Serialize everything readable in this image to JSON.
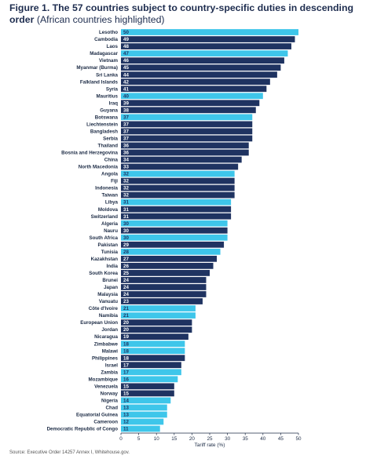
{
  "title": {
    "main": "Figure 1. The 57 countries subject to country-specific duties in descending order",
    "sub": " (African countries highlighted)"
  },
  "source": "Source: Executive Order 14257 Annex I, Whitehouse.gov.",
  "colors": {
    "african": "#3ec6ea",
    "other": "#1f3361",
    "text": "#1b2a44"
  },
  "chart_data": {
    "type": "bar",
    "orientation": "horizontal",
    "xlabel": "Tariff rate (%)",
    "xlim": [
      0,
      50
    ],
    "xticks": [
      0,
      5,
      10,
      15,
      20,
      25,
      30,
      35,
      40,
      45,
      50
    ],
    "grid": false,
    "categories": [
      "Lesotho",
      "Cambodia",
      "Laos",
      "Madagascar",
      "Vietnam",
      "Myanmar (Burma)",
      "Sri Lanka",
      "Falkland Islands",
      "Syria",
      "Mauritius",
      "Iraq",
      "Guyana",
      "Botswana",
      "Liechtenstein",
      "Bangladesh",
      "Serbia",
      "Thailand",
      "Bosnia and Herzegovina",
      "China",
      "North Macedonia",
      "Angola",
      "Fiji",
      "Indonesia",
      "Taiwan",
      "Libya",
      "Moldova",
      "Switzerland",
      "Algeria",
      "Nauru",
      "South Africa",
      "Pakistan",
      "Tunisia",
      "Kazakhstan",
      "India",
      "South Korea",
      "Brunei",
      "Japan",
      "Malaysia",
      "Vanuatu",
      "Côte d'Ivoire",
      "Namibia",
      "European Union",
      "Jordan",
      "Nicaragua",
      "Zimbabwe",
      "Malawi",
      "Philippines",
      "Israel",
      "Zambia",
      "Mozambique",
      "Venezuela",
      "Norway",
      "Nigeria",
      "Chad",
      "Equatorial Guinea",
      "Cameroon",
      "Democratic Republic of Congo"
    ],
    "values": [
      50,
      49,
      48,
      47,
      46,
      45,
      44,
      42,
      41,
      40,
      39,
      38,
      37,
      37,
      37,
      37,
      36,
      36,
      34,
      33,
      32,
      32,
      32,
      32,
      31,
      31,
      31,
      30,
      30,
      30,
      29,
      28,
      27,
      26,
      25,
      24,
      24,
      24,
      23,
      21,
      21,
      20,
      20,
      19,
      18,
      18,
      18,
      17,
      17,
      16,
      15,
      15,
      14,
      13,
      13,
      12,
      11
    ],
    "african": [
      true,
      false,
      false,
      true,
      false,
      false,
      false,
      false,
      false,
      true,
      false,
      false,
      true,
      false,
      false,
      false,
      false,
      false,
      false,
      false,
      true,
      false,
      false,
      false,
      true,
      false,
      false,
      true,
      false,
      true,
      false,
      true,
      false,
      false,
      false,
      false,
      false,
      false,
      false,
      true,
      true,
      false,
      false,
      false,
      true,
      true,
      false,
      false,
      true,
      true,
      false,
      false,
      true,
      true,
      true,
      true,
      true
    ]
  }
}
